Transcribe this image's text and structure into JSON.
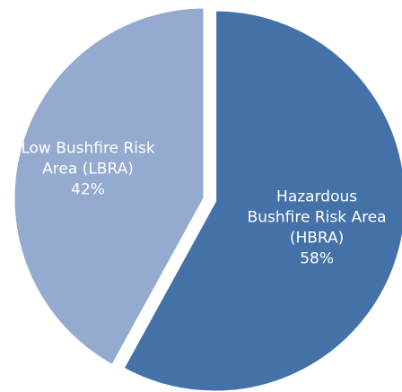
{
  "chart_data": {
    "type": "pie",
    "slices": [
      {
        "label_lines": [
          "Hazardous",
          "Bushfire Risk Area",
          "(HBRA)"
        ],
        "percent_label": "58%",
        "value": 58,
        "color": "#4472A8"
      },
      {
        "label_lines": [
          "Low Bushfire Risk",
          "Area (LBRA)"
        ],
        "percent_label": "42%",
        "value": 42,
        "color": "#95AACF"
      }
    ],
    "exploded_slice": 0,
    "start_angle_deg": 0,
    "direction": "clockwise"
  }
}
